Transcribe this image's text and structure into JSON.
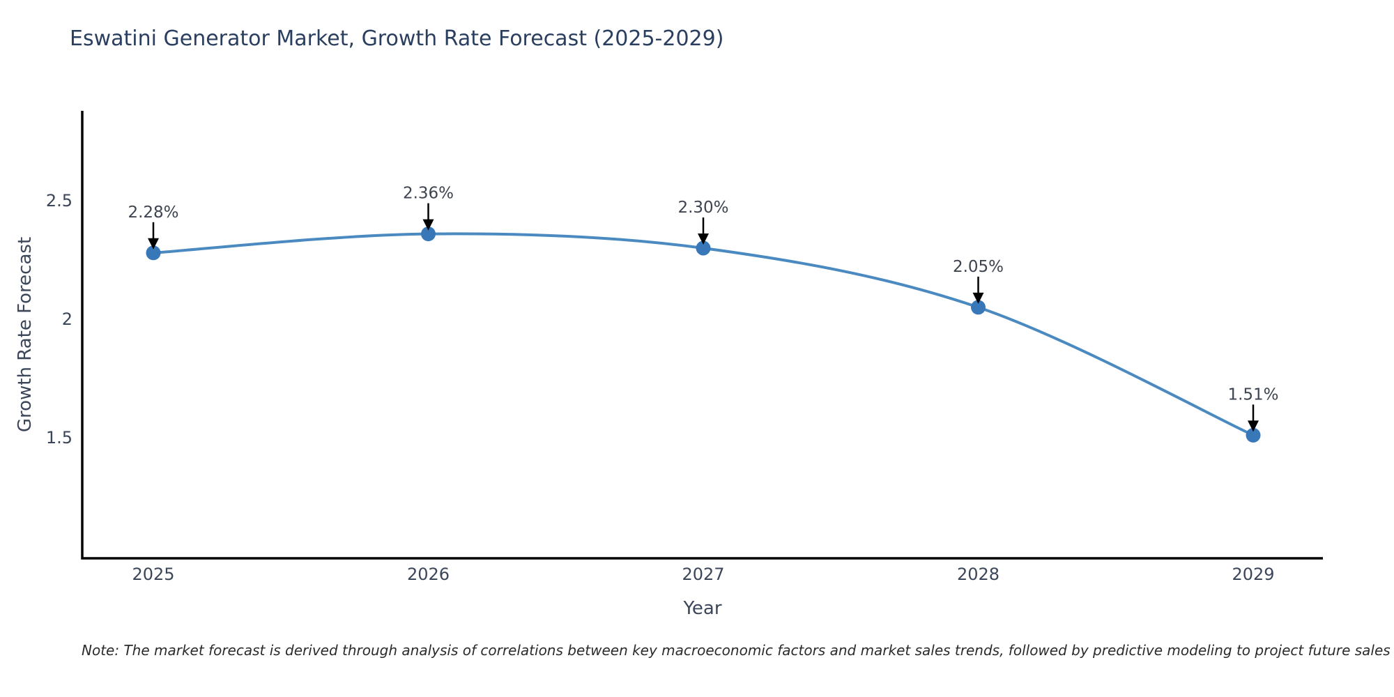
{
  "title": "Eswatini Generator Market, Growth Rate Forecast (2025-2029)",
  "note": "Note: The market forecast is derived through analysis of correlations between key macroeconomic factors and market sales trends, followed by predictive modeling to project future sales",
  "chart_data": {
    "type": "line",
    "title": "Eswatini Generator Market, Growth Rate Forecast (2025-2029)",
    "x": [
      2025,
      2026,
      2027,
      2028,
      2029
    ],
    "xtick_labels": [
      "2025",
      "2026",
      "2027",
      "2028",
      "2029"
    ],
    "series": [
      {
        "name": "Growth Rate Forecast",
        "values": [
          2.28,
          2.36,
          2.3,
          2.05,
          1.51
        ]
      }
    ],
    "point_labels": [
      "2.28%",
      "2.36%",
      "2.30%",
      "2.05%",
      "1.51%"
    ],
    "xlabel": "Year",
    "ylabel": "Growth Rate Forecast",
    "yticks": [
      2.5,
      2,
      1.5
    ],
    "ytick_labels": [
      "2.5",
      "2",
      "1.5"
    ],
    "ylim": [
      0.99,
      2.88
    ],
    "grid": false,
    "legend": "none",
    "line_shape": "spline",
    "colors": {
      "line": "#4a8ac0",
      "marker": "#3878b8",
      "axis": "#000000",
      "title_text": "#2a3f5f",
      "tick_text": "#3c4659",
      "annotation_text": "#3d4450",
      "arrow": "#000000"
    }
  }
}
